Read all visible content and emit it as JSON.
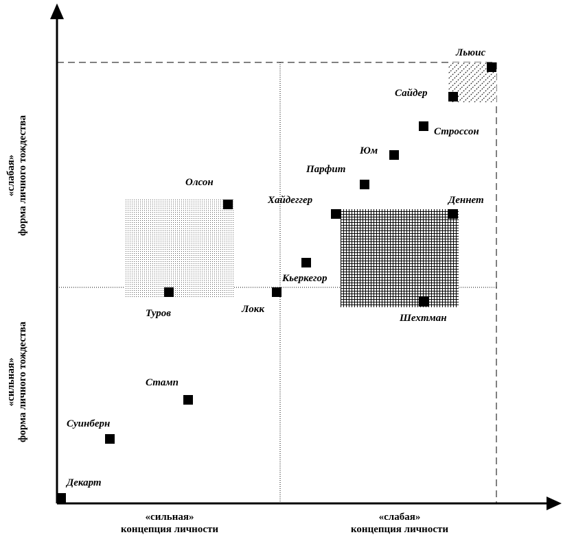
{
  "axes": {
    "x_left_quote": "«сильная»",
    "x_left_text": "концепция личности",
    "x_right_quote": "«слабая»",
    "x_right_text": "концепция личности",
    "y_top_quote": "«слабая»",
    "y_top_text": "форма личного тождества",
    "y_bottom_quote": "«сильная»",
    "y_bottom_text": "форма личного тождества"
  },
  "points": [
    {
      "id": "dekart",
      "label": "Декарт"
    },
    {
      "id": "suinbern",
      "label": "Суинберн"
    },
    {
      "id": "stamp",
      "label": "Стамп"
    },
    {
      "id": "turov",
      "label": "Туров"
    },
    {
      "id": "olson",
      "label": "Олсон"
    },
    {
      "id": "lokk",
      "label": "Локк"
    },
    {
      "id": "kierkegor",
      "label": "Кьеркегор"
    },
    {
      "id": "haidegger",
      "label": "Хайдеггер"
    },
    {
      "id": "parfit",
      "label": "Парфит"
    },
    {
      "id": "yum",
      "label": "Юм"
    },
    {
      "id": "strosson",
      "label": "Строссон"
    },
    {
      "id": "saider",
      "label": "Сайдер"
    },
    {
      "id": "lyuis",
      "label": "Льюис"
    },
    {
      "id": "dennet",
      "label": "Деннет"
    },
    {
      "id": "shekhtman",
      "label": "Шехтман"
    }
  ]
}
